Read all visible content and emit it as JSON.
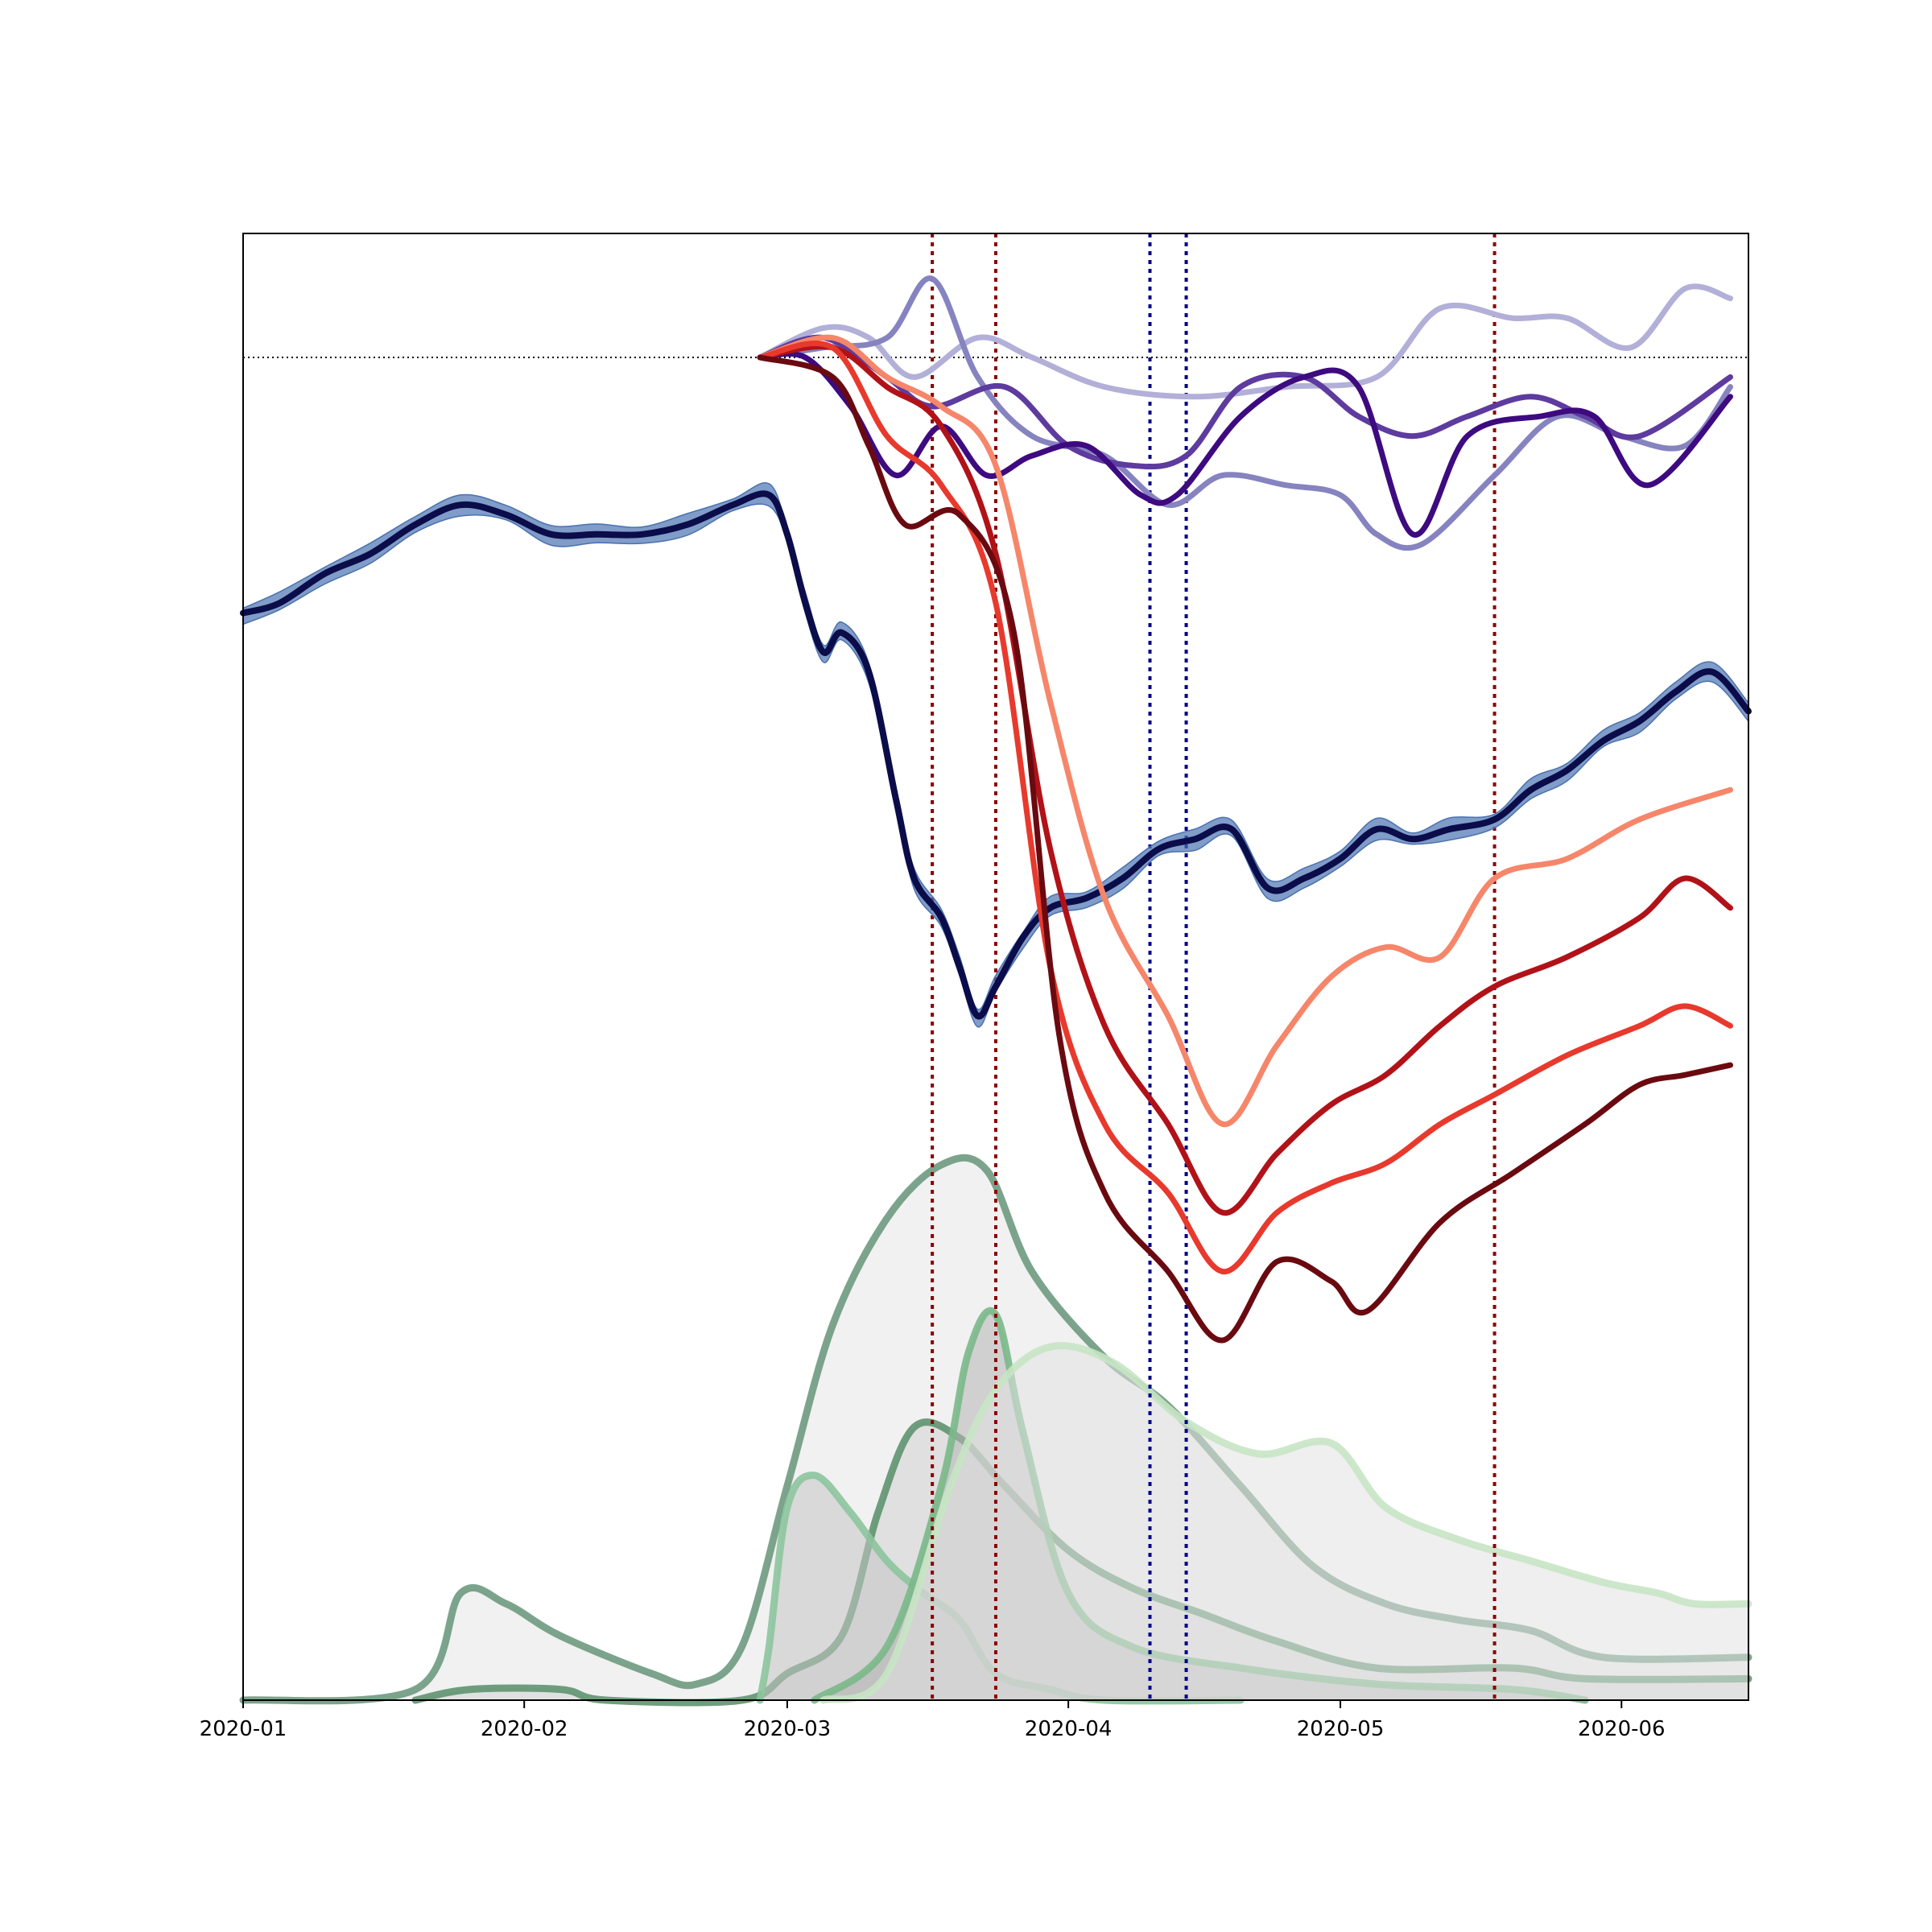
{
  "chart_data": {
    "type": "line",
    "title": "",
    "xlabel": "",
    "ylabel": "",
    "x_ticks": [
      "2020-01",
      "2020-02",
      "2020-03",
      "2020-04",
      "2020-05",
      "2020-06"
    ],
    "x_range": [
      "2020-01-01",
      "2020-06-15"
    ],
    "y_axis_visible": false,
    "grid": false,
    "reference_line": {
      "y": 1.0,
      "style": "dotted",
      "color": "#000000"
    },
    "event_lines": [
      {
        "date": "2020-03-17",
        "color": "#8b0000"
      },
      {
        "date": "2020-03-24",
        "color": "#8b0000"
      },
      {
        "date": "2020-04-10",
        "color": "#00008b"
      },
      {
        "date": "2020-04-14",
        "color": "#00008b"
      },
      {
        "date": "2020-05-18",
        "color": "#8b0000"
      }
    ],
    "mobility_series": {
      "color": "#0b0c4a",
      "band_color": "#4a72b0",
      "points": [
        [
          "2020-01-01",
          0.74
        ],
        [
          "2020-01-05",
          0.75
        ],
        [
          "2020-01-10",
          0.78
        ],
        [
          "2020-01-15",
          0.8
        ],
        [
          "2020-01-20",
          0.83
        ],
        [
          "2020-01-25",
          0.85
        ],
        [
          "2020-01-30",
          0.84
        ],
        [
          "2020-02-04",
          0.82
        ],
        [
          "2020-02-09",
          0.82
        ],
        [
          "2020-02-14",
          0.82
        ],
        [
          "2020-02-19",
          0.83
        ],
        [
          "2020-02-24",
          0.85
        ],
        [
          "2020-02-28",
          0.86
        ],
        [
          "2020-03-01",
          0.82
        ],
        [
          "2020-03-03",
          0.75
        ],
        [
          "2020-03-05",
          0.7
        ],
        [
          "2020-03-07",
          0.72
        ],
        [
          "2020-03-10",
          0.68
        ],
        [
          "2020-03-13",
          0.55
        ],
        [
          "2020-03-15",
          0.47
        ],
        [
          "2020-03-18",
          0.43
        ],
        [
          "2020-03-20",
          0.38
        ],
        [
          "2020-03-22",
          0.33
        ],
        [
          "2020-03-24",
          0.36
        ],
        [
          "2020-03-27",
          0.41
        ],
        [
          "2020-03-30",
          0.44
        ],
        [
          "2020-04-03",
          0.45
        ],
        [
          "2020-04-07",
          0.47
        ],
        [
          "2020-04-11",
          0.5
        ],
        [
          "2020-04-15",
          0.51
        ],
        [
          "2020-04-19",
          0.52
        ],
        [
          "2020-04-23",
          0.46
        ],
        [
          "2020-04-27",
          0.47
        ],
        [
          "2020-05-01",
          0.49
        ],
        [
          "2020-05-05",
          0.52
        ],
        [
          "2020-05-09",
          0.51
        ],
        [
          "2020-05-13",
          0.52
        ],
        [
          "2020-05-18",
          0.53
        ],
        [
          "2020-05-22",
          0.56
        ],
        [
          "2020-05-26",
          0.58
        ],
        [
          "2020-05-30",
          0.61
        ],
        [
          "2020-06-03",
          0.63
        ],
        [
          "2020-06-07",
          0.66
        ],
        [
          "2020-06-11",
          0.68
        ],
        [
          "2020-06-15",
          0.64
        ]
      ]
    },
    "purple_series": [
      {
        "color": "#b2b0d8",
        "points": [
          [
            "2020-02-27",
            1.0
          ],
          [
            "2020-03-05",
            1.03
          ],
          [
            "2020-03-10",
            1.02
          ],
          [
            "2020-03-15",
            0.98
          ],
          [
            "2020-03-22",
            1.02
          ],
          [
            "2020-03-28",
            1.0
          ],
          [
            "2020-04-05",
            0.97
          ],
          [
            "2020-04-15",
            0.96
          ],
          [
            "2020-04-25",
            0.97
          ],
          [
            "2020-05-05",
            0.98
          ],
          [
            "2020-05-12",
            1.05
          ],
          [
            "2020-05-20",
            1.04
          ],
          [
            "2020-05-26",
            1.04
          ],
          [
            "2020-06-02",
            1.01
          ],
          [
            "2020-06-08",
            1.07
          ],
          [
            "2020-06-13",
            1.06
          ]
        ]
      },
      {
        "color": "#8683c0",
        "points": [
          [
            "2020-02-27",
            1.0
          ],
          [
            "2020-03-05",
            1.01
          ],
          [
            "2020-03-12",
            1.02
          ],
          [
            "2020-03-17",
            1.08
          ],
          [
            "2020-03-22",
            0.98
          ],
          [
            "2020-03-28",
            0.92
          ],
          [
            "2020-04-05",
            0.9
          ],
          [
            "2020-04-12",
            0.85
          ],
          [
            "2020-04-18",
            0.88
          ],
          [
            "2020-04-25",
            0.87
          ],
          [
            "2020-05-01",
            0.86
          ],
          [
            "2020-05-05",
            0.82
          ],
          [
            "2020-05-10",
            0.81
          ],
          [
            "2020-05-18",
            0.88
          ],
          [
            "2020-05-25",
            0.94
          ],
          [
            "2020-06-01",
            0.92
          ],
          [
            "2020-06-08",
            0.91
          ],
          [
            "2020-06-13",
            0.97
          ]
        ]
      },
      {
        "color": "#5e3b9e",
        "points": [
          [
            "2020-02-27",
            1.0
          ],
          [
            "2020-03-05",
            1.02
          ],
          [
            "2020-03-12",
            0.98
          ],
          [
            "2020-03-17",
            0.95
          ],
          [
            "2020-03-25",
            0.97
          ],
          [
            "2020-04-01",
            0.91
          ],
          [
            "2020-04-08",
            0.89
          ],
          [
            "2020-04-14",
            0.9
          ],
          [
            "2020-04-20",
            0.97
          ],
          [
            "2020-04-27",
            0.98
          ],
          [
            "2020-05-03",
            0.94
          ],
          [
            "2020-05-09",
            0.92
          ],
          [
            "2020-05-15",
            0.94
          ],
          [
            "2020-05-22",
            0.96
          ],
          [
            "2020-05-28",
            0.94
          ],
          [
            "2020-06-03",
            0.92
          ],
          [
            "2020-06-13",
            0.98
          ]
        ]
      },
      {
        "color": "#3e0a80",
        "points": [
          [
            "2020-02-27",
            1.0
          ],
          [
            "2020-03-03",
            1.0
          ],
          [
            "2020-03-08",
            0.95
          ],
          [
            "2020-03-13",
            0.88
          ],
          [
            "2020-03-18",
            0.93
          ],
          [
            "2020-03-23",
            0.88
          ],
          [
            "2020-03-28",
            0.9
          ],
          [
            "2020-04-03",
            0.91
          ],
          [
            "2020-04-09",
            0.86
          ],
          [
            "2020-04-13",
            0.86
          ],
          [
            "2020-04-20",
            0.94
          ],
          [
            "2020-04-27",
            0.98
          ],
          [
            "2020-05-03",
            0.97
          ],
          [
            "2020-05-09",
            0.82
          ],
          [
            "2020-05-15",
            0.92
          ],
          [
            "2020-05-23",
            0.94
          ],
          [
            "2020-05-29",
            0.94
          ],
          [
            "2020-06-04",
            0.87
          ],
          [
            "2020-06-13",
            0.96
          ]
        ]
      }
    ],
    "red_series": [
      {
        "color": "#f6866a",
        "points": [
          [
            "2020-02-27",
            1.0
          ],
          [
            "2020-03-06",
            1.02
          ],
          [
            "2020-03-12",
            0.98
          ],
          [
            "2020-03-18",
            0.95
          ],
          [
            "2020-03-24",
            0.89
          ],
          [
            "2020-03-30",
            0.65
          ],
          [
            "2020-04-05",
            0.45
          ],
          [
            "2020-04-12",
            0.33
          ],
          [
            "2020-04-18",
            0.22
          ],
          [
            "2020-04-24",
            0.3
          ],
          [
            "2020-04-30",
            0.37
          ],
          [
            "2020-05-06",
            0.4
          ],
          [
            "2020-05-12",
            0.39
          ],
          [
            "2020-05-18",
            0.47
          ],
          [
            "2020-05-26",
            0.49
          ],
          [
            "2020-06-03",
            0.53
          ],
          [
            "2020-06-13",
            0.56
          ]
        ]
      },
      {
        "color": "#b11218",
        "points": [
          [
            "2020-02-27",
            1.0
          ],
          [
            "2020-03-06",
            1.01
          ],
          [
            "2020-03-12",
            0.97
          ],
          [
            "2020-03-18",
            0.93
          ],
          [
            "2020-03-24",
            0.8
          ],
          [
            "2020-03-30",
            0.5
          ],
          [
            "2020-04-05",
            0.32
          ],
          [
            "2020-04-12",
            0.22
          ],
          [
            "2020-04-18",
            0.13
          ],
          [
            "2020-04-24",
            0.19
          ],
          [
            "2020-04-30",
            0.24
          ],
          [
            "2020-05-06",
            0.27
          ],
          [
            "2020-05-12",
            0.32
          ],
          [
            "2020-05-18",
            0.36
          ],
          [
            "2020-05-26",
            0.39
          ],
          [
            "2020-06-03",
            0.43
          ],
          [
            "2020-06-08",
            0.47
          ],
          [
            "2020-06-13",
            0.44
          ]
        ]
      },
      {
        "color": "#e8392d",
        "points": [
          [
            "2020-02-27",
            1.0
          ],
          [
            "2020-03-06",
            1.01
          ],
          [
            "2020-03-12",
            0.92
          ],
          [
            "2020-03-18",
            0.87
          ],
          [
            "2020-03-24",
            0.75
          ],
          [
            "2020-03-30",
            0.38
          ],
          [
            "2020-04-05",
            0.22
          ],
          [
            "2020-04-12",
            0.15
          ],
          [
            "2020-04-18",
            0.07
          ],
          [
            "2020-04-24",
            0.13
          ],
          [
            "2020-04-30",
            0.16
          ],
          [
            "2020-05-06",
            0.18
          ],
          [
            "2020-05-12",
            0.22
          ],
          [
            "2020-05-18",
            0.25
          ],
          [
            "2020-05-26",
            0.29
          ],
          [
            "2020-06-03",
            0.32
          ],
          [
            "2020-06-08",
            0.34
          ],
          [
            "2020-06-13",
            0.32
          ]
        ]
      },
      {
        "color": "#6a0a10",
        "points": [
          [
            "2020-02-27",
            1.0
          ],
          [
            "2020-03-06",
            0.98
          ],
          [
            "2020-03-10",
            0.91
          ],
          [
            "2020-03-14",
            0.83
          ],
          [
            "2020-03-20",
            0.84
          ],
          [
            "2020-03-26",
            0.72
          ],
          [
            "2020-03-31",
            0.31
          ],
          [
            "2020-04-05",
            0.15
          ],
          [
            "2020-04-12",
            0.07
          ],
          [
            "2020-04-18",
            0.0
          ],
          [
            "2020-04-24",
            0.08
          ],
          [
            "2020-04-30",
            0.06
          ],
          [
            "2020-05-04",
            0.03
          ],
          [
            "2020-05-12",
            0.12
          ],
          [
            "2020-05-20",
            0.17
          ],
          [
            "2020-05-28",
            0.22
          ],
          [
            "2020-06-03",
            0.26
          ],
          [
            "2020-06-08",
            0.27
          ],
          [
            "2020-06-13",
            0.28
          ]
        ]
      }
    ],
    "case_curves": [
      {
        "color": "#6e9a80",
        "points": [
          [
            "2020-01-01",
            0.0
          ],
          [
            "2020-01-20",
            0.02
          ],
          [
            "2020-01-25",
            0.2
          ],
          [
            "2020-01-30",
            0.18
          ],
          [
            "2020-02-05",
            0.12
          ],
          [
            "2020-02-15",
            0.05
          ],
          [
            "2020-02-20",
            0.03
          ],
          [
            "2020-02-25",
            0.1
          ],
          [
            "2020-03-01",
            0.4
          ],
          [
            "2020-03-06",
            0.7
          ],
          [
            "2020-03-12",
            0.9
          ],
          [
            "2020-03-18",
            1.0
          ],
          [
            "2020-03-23",
            0.99
          ],
          [
            "2020-03-28",
            0.8
          ],
          [
            "2020-04-05",
            0.64
          ],
          [
            "2020-04-12",
            0.55
          ],
          [
            "2020-04-20",
            0.4
          ],
          [
            "2020-04-28",
            0.25
          ],
          [
            "2020-05-06",
            0.18
          ],
          [
            "2020-05-14",
            0.15
          ],
          [
            "2020-05-22",
            0.13
          ],
          [
            "2020-05-30",
            0.08
          ],
          [
            "2020-06-15",
            0.08
          ]
        ]
      },
      {
        "color": "#5f9470",
        "points": [
          [
            "2020-01-20",
            0.0
          ],
          [
            "2020-01-26",
            0.02
          ],
          [
            "2020-02-05",
            0.02
          ],
          [
            "2020-02-10",
            0.0
          ],
          [
            "2020-02-25",
            0.0
          ],
          [
            "2020-03-01",
            0.05
          ],
          [
            "2020-03-07",
            0.12
          ],
          [
            "2020-03-11",
            0.35
          ],
          [
            "2020-03-15",
            0.51
          ],
          [
            "2020-03-20",
            0.49
          ],
          [
            "2020-03-25",
            0.4
          ],
          [
            "2020-04-01",
            0.28
          ],
          [
            "2020-04-08",
            0.21
          ],
          [
            "2020-04-16",
            0.16
          ],
          [
            "2020-04-24",
            0.11
          ],
          [
            "2020-05-05",
            0.06
          ],
          [
            "2020-05-20",
            0.06
          ],
          [
            "2020-05-28",
            0.04
          ],
          [
            "2020-06-15",
            0.04
          ]
        ]
      },
      {
        "color": "#8cc49c",
        "points": [
          [
            "2020-02-27",
            0.0
          ],
          [
            "2020-02-28",
            0.1
          ],
          [
            "2020-03-01",
            0.36
          ],
          [
            "2020-03-04",
            0.42
          ],
          [
            "2020-03-08",
            0.35
          ],
          [
            "2020-03-12",
            0.26
          ],
          [
            "2020-03-16",
            0.2
          ],
          [
            "2020-03-20",
            0.15
          ],
          [
            "2020-03-24",
            0.05
          ],
          [
            "2020-03-30",
            0.02
          ],
          [
            "2020-04-05",
            0.0
          ],
          [
            "2020-04-20",
            0.0
          ]
        ]
      },
      {
        "color": "#7ab888",
        "points": [
          [
            "2020-03-04",
            0.0
          ],
          [
            "2020-03-12",
            0.1
          ],
          [
            "2020-03-18",
            0.4
          ],
          [
            "2020-03-21",
            0.65
          ],
          [
            "2020-03-24",
            0.72
          ],
          [
            "2020-03-27",
            0.5
          ],
          [
            "2020-04-01",
            0.2
          ],
          [
            "2020-04-08",
            0.1
          ],
          [
            "2020-04-20",
            0.06
          ],
          [
            "2020-05-05",
            0.03
          ],
          [
            "2020-05-20",
            0.02
          ],
          [
            "2020-05-28",
            0.0
          ]
        ]
      },
      {
        "color": "#c6e4c4",
        "points": [
          [
            "2020-03-05",
            0.0
          ],
          [
            "2020-03-12",
            0.05
          ],
          [
            "2020-03-19",
            0.4
          ],
          [
            "2020-03-24",
            0.58
          ],
          [
            "2020-03-30",
            0.66
          ],
          [
            "2020-04-06",
            0.63
          ],
          [
            "2020-04-14",
            0.52
          ],
          [
            "2020-04-22",
            0.46
          ],
          [
            "2020-04-30",
            0.48
          ],
          [
            "2020-05-06",
            0.36
          ],
          [
            "2020-05-14",
            0.3
          ],
          [
            "2020-05-22",
            0.26
          ],
          [
            "2020-05-30",
            0.22
          ],
          [
            "2020-06-05",
            0.2
          ],
          [
            "2020-06-09",
            0.18
          ],
          [
            "2020-06-15",
            0.18
          ]
        ]
      }
    ]
  }
}
